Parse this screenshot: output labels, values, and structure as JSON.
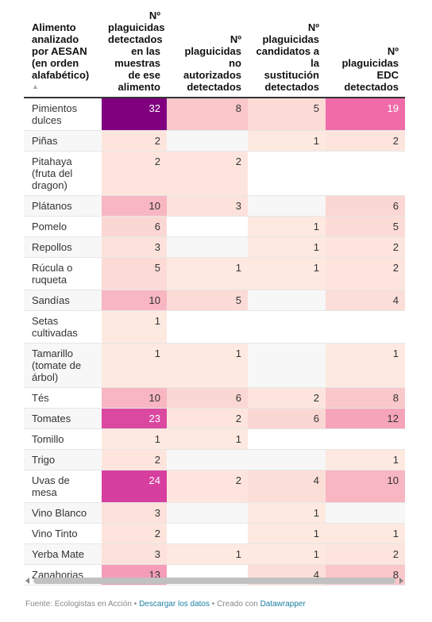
{
  "table": {
    "header": [
      "Alimento analizado por AESAN (en orden alafabético)",
      "Nº plaguicidas detectados en las muestras de ese alimento",
      "Nº plaguicidas no autorizados detectados",
      "Nº plaguicidas candidatos a la sustitución detectados",
      "Nº plaguicidas EDC detectados"
    ],
    "rows": [
      [
        "Pimientos dulces",
        32,
        8,
        5,
        19
      ],
      [
        "Piñas",
        2,
        null,
        1,
        2
      ],
      [
        "Pitahaya (fruta del dragon)",
        2,
        2,
        null,
        null
      ],
      [
        "Plátanos",
        10,
        3,
        null,
        6
      ],
      [
        "Pomelo",
        6,
        null,
        1,
        5
      ],
      [
        "Repollos",
        3,
        null,
        1,
        2
      ],
      [
        "Rúcula o ruqueta",
        5,
        1,
        1,
        2
      ],
      [
        "Sandías",
        10,
        5,
        null,
        4
      ],
      [
        "Setas cultivadas",
        1,
        null,
        null,
        null
      ],
      [
        "Tamarillo (tomate de árbol)",
        1,
        1,
        null,
        1
      ],
      [
        "Tés",
        10,
        6,
        2,
        8
      ],
      [
        "Tomates",
        23,
        2,
        6,
        12
      ],
      [
        "Tomillo",
        1,
        1,
        null,
        null
      ],
      [
        "Trigo",
        2,
        null,
        null,
        1
      ],
      [
        "Uvas de mesa",
        24,
        2,
        4,
        10
      ],
      [
        "Vino Blanco",
        3,
        null,
        1,
        null
      ],
      [
        "Vino Tinto",
        2,
        null,
        1,
        1
      ],
      [
        "Yerba Mate",
        3,
        1,
        1,
        2
      ],
      [
        "Zanahorias",
        13,
        null,
        4,
        8
      ]
    ]
  },
  "footer": {
    "source": "Fuente: Ecologistas en Acción",
    "separator": "•",
    "download": "Descargar los datos",
    "credit": "Creado con",
    "tool": "Datawrapper"
  }
}
